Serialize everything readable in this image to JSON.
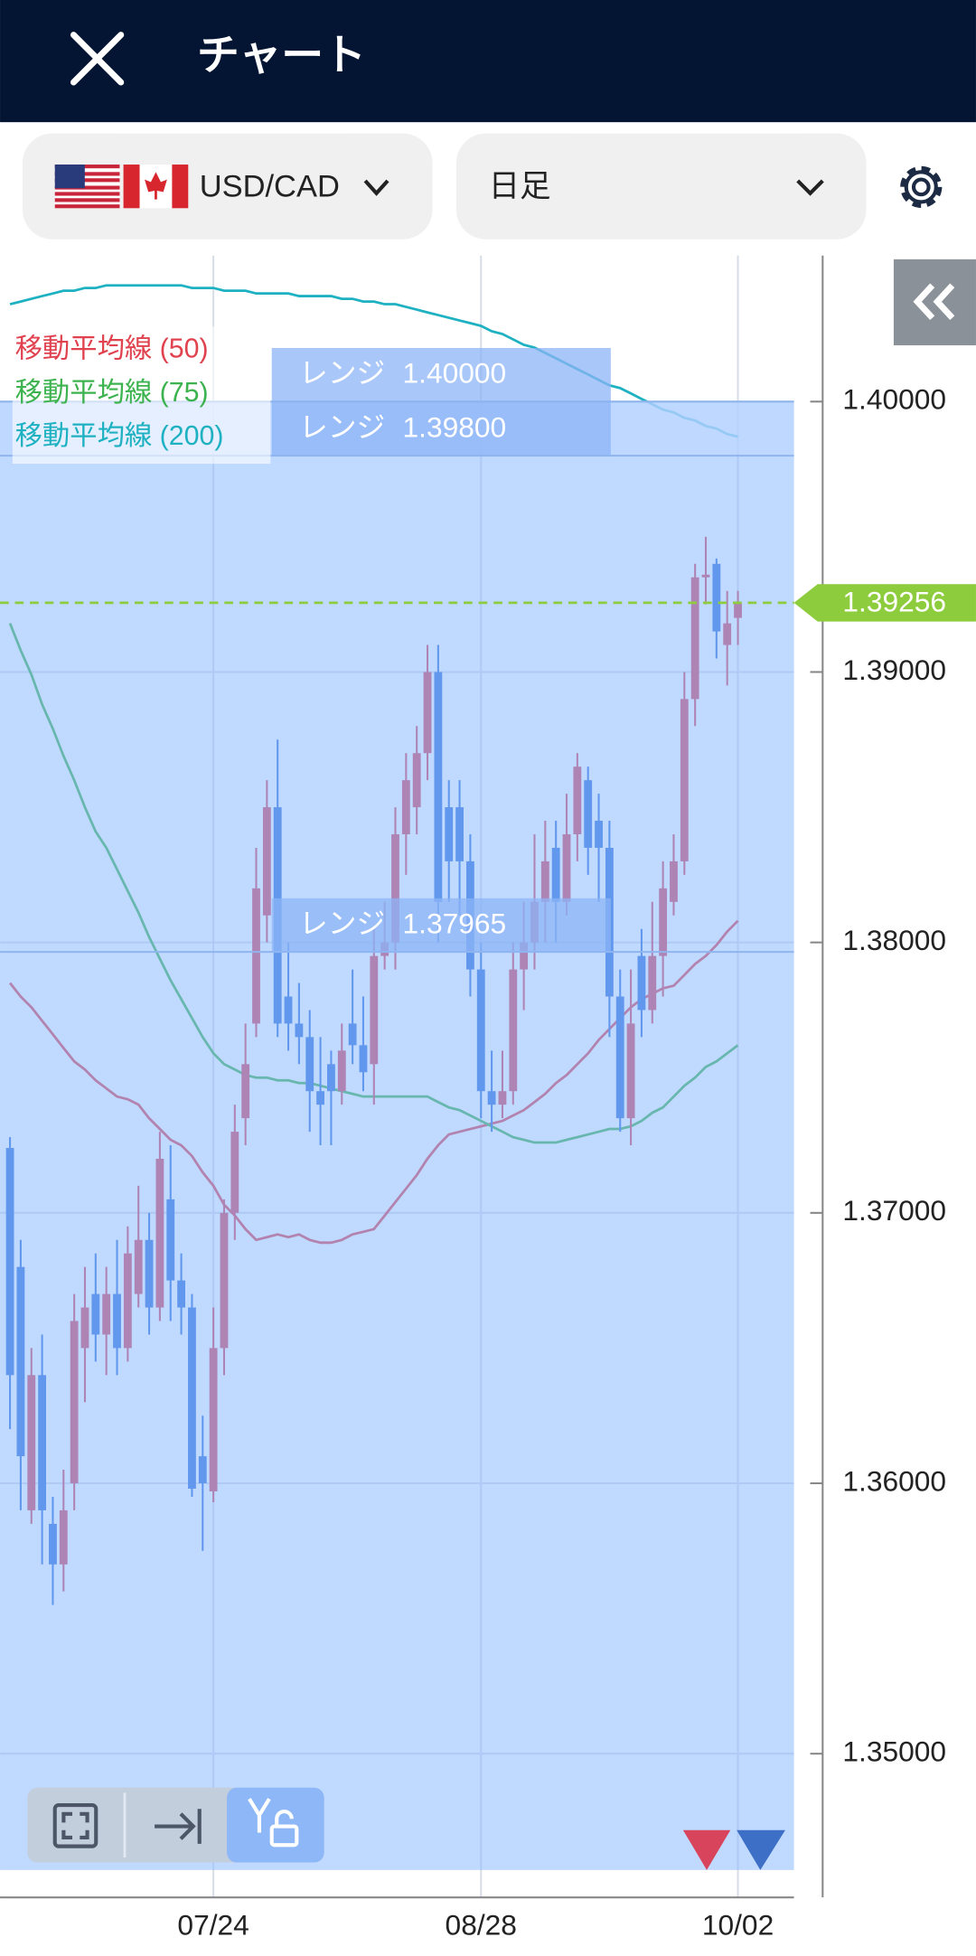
{
  "header": {
    "title": "チャート"
  },
  "controls": {
    "pair": "USD/CAD",
    "timeframe": "日足"
  },
  "chart_data": {
    "type": "candlestick",
    "categories": [
      null,
      null,
      null,
      null,
      null,
      null,
      null,
      null,
      null,
      null,
      null,
      null,
      null,
      null,
      null,
      null,
      null,
      null,
      null,
      "07/24",
      null,
      null,
      null,
      null,
      null,
      null,
      null,
      null,
      null,
      null,
      null,
      null,
      null,
      null,
      null,
      null,
      null,
      null,
      null,
      null,
      null,
      null,
      null,
      null,
      "08/28",
      null,
      null,
      null,
      null,
      null,
      null,
      null,
      null,
      null,
      null,
      null,
      null,
      null,
      null,
      null,
      null,
      null,
      null,
      null,
      null,
      null,
      null,
      null,
      "10/02"
    ],
    "open": [
      1.3724,
      1.368,
      1.359,
      1.364,
      1.3585,
      1.357,
      1.36,
      1.365,
      1.367,
      1.3655,
      1.367,
      1.365,
      1.367,
      1.369,
      1.3665,
      1.3705,
      1.3675,
      1.3665,
      1.361,
      1.3597,
      1.365,
      1.37,
      1.3735,
      1.377,
      1.381,
      1.385,
      1.378,
      1.377,
      1.3765,
      1.3745,
      1.3755,
      1.3745,
      1.377,
      1.3762,
      1.3755,
      1.3795,
      1.38,
      1.384,
      1.385,
      1.387,
      1.39,
      1.385,
      1.385,
      1.383,
      1.379,
      1.3745,
      1.374,
      1.3745,
      1.379,
      1.38,
      1.3815,
      1.3835,
      1.3815,
      1.384,
      1.386,
      1.3845,
      1.3835,
      1.378,
      1.3735,
      1.3795,
      1.3775,
      1.3795,
      1.3815,
      1.383,
      1.389,
      1.3935,
      1.394,
      1.391,
      1.392
    ],
    "high": [
      1.3728,
      1.369,
      1.365,
      1.3655,
      1.3595,
      1.3605,
      1.367,
      1.368,
      1.3685,
      1.368,
      1.369,
      1.3695,
      1.371,
      1.37,
      1.373,
      1.3725,
      1.3685,
      1.367,
      1.3625,
      1.3665,
      1.3705,
      1.374,
      1.377,
      1.3835,
      1.386,
      1.3875,
      1.38,
      1.3785,
      1.3775,
      1.3765,
      1.376,
      1.377,
      1.379,
      1.378,
      1.3805,
      1.3815,
      1.385,
      1.387,
      1.388,
      1.391,
      1.391,
      1.386,
      1.386,
      1.384,
      1.38,
      1.376,
      1.376,
      1.38,
      1.3815,
      1.384,
      1.3845,
      1.3845,
      1.3855,
      1.387,
      1.3865,
      1.3855,
      1.3845,
      1.379,
      1.379,
      1.3805,
      1.3815,
      1.383,
      1.384,
      1.39,
      1.394,
      1.395,
      1.3942,
      1.393,
      1.393
    ],
    "low": [
      1.362,
      1.359,
      1.3585,
      1.357,
      1.3555,
      1.356,
      1.359,
      1.363,
      1.3645,
      1.364,
      1.364,
      1.3645,
      1.3665,
      1.3655,
      1.366,
      1.366,
      1.3655,
      1.3595,
      1.3575,
      1.3593,
      1.364,
      1.369,
      1.3725,
      1.3765,
      1.38,
      1.3765,
      1.376,
      1.3755,
      1.373,
      1.3725,
      1.3725,
      1.374,
      1.3755,
      1.3745,
      1.374,
      1.379,
      1.379,
      1.3825,
      1.384,
      1.386,
      1.38,
      1.3815,
      1.381,
      1.378,
      1.3735,
      1.373,
      1.3735,
      1.374,
      1.3775,
      1.379,
      1.38,
      1.38,
      1.381,
      1.383,
      1.3825,
      1.3815,
      1.3765,
      1.373,
      1.3725,
      1.3765,
      1.377,
      1.378,
      1.381,
      1.3825,
      1.388,
      1.3925,
      1.3905,
      1.3895,
      1.391
    ],
    "close": [
      1.364,
      1.361,
      1.364,
      1.359,
      1.357,
      1.359,
      1.366,
      1.3665,
      1.3655,
      1.367,
      1.365,
      1.3685,
      1.369,
      1.3665,
      1.372,
      1.3675,
      1.3665,
      1.3598,
      1.36,
      1.365,
      1.37,
      1.373,
      1.3755,
      1.382,
      1.385,
      1.377,
      1.377,
      1.3765,
      1.3745,
      1.374,
      1.3745,
      1.376,
      1.3762,
      1.3752,
      1.3795,
      1.38,
      1.384,
      1.386,
      1.387,
      1.39,
      1.3815,
      1.383,
      1.383,
      1.379,
      1.3745,
      1.374,
      1.3745,
      1.379,
      1.38,
      1.3815,
      1.383,
      1.3815,
      1.384,
      1.3865,
      1.3835,
      1.3835,
      1.378,
      1.3735,
      1.377,
      1.3775,
      1.3795,
      1.382,
      1.383,
      1.389,
      1.3935,
      1.3936,
      1.3915,
      1.3918,
      1.39256
    ],
    "up_color": "#d8445c",
    "down_color": "#2e6fd8",
    "series": [
      {
        "name": "移動平均線 (50)",
        "color": "#e0424f",
        "values": [
          1.3785,
          1.378,
          1.3776,
          1.3771,
          1.3766,
          1.3761,
          1.3756,
          1.3753,
          1.3749,
          1.3746,
          1.3743,
          1.3742,
          1.374,
          1.3735,
          1.3731,
          1.3727,
          1.3725,
          1.3721,
          1.3715,
          1.371,
          1.3703,
          1.3699,
          1.3694,
          1.369,
          1.3691,
          1.3692,
          1.3691,
          1.3692,
          1.369,
          1.3689,
          1.3689,
          1.369,
          1.3692,
          1.3693,
          1.3694,
          1.3699,
          1.3704,
          1.3709,
          1.3714,
          1.372,
          1.3725,
          1.3729,
          1.373,
          1.3731,
          1.3732,
          1.3733,
          1.3734,
          1.3736,
          1.3738,
          1.3741,
          1.3744,
          1.3748,
          1.3751,
          1.3755,
          1.3759,
          1.3764,
          1.3768,
          1.3772,
          1.3776,
          1.3779,
          1.3781,
          1.3783,
          1.3784,
          1.3788,
          1.3792,
          1.3795,
          1.3799,
          1.3804,
          1.3808
        ]
      },
      {
        "name": "移動平均線 (75)",
        "color": "#3db34f",
        "values": [
          1.3918,
          1.3908,
          1.3899,
          1.3888,
          1.3879,
          1.3869,
          1.386,
          1.385,
          1.3841,
          1.3835,
          1.3827,
          1.3819,
          1.3811,
          1.3802,
          1.3794,
          1.3786,
          1.3779,
          1.3772,
          1.3765,
          1.3759,
          1.3755,
          1.3753,
          1.3751,
          1.375,
          1.375,
          1.3749,
          1.3749,
          1.3748,
          1.3748,
          1.3747,
          1.3746,
          1.3745,
          1.3744,
          1.3743,
          1.3743,
          1.3743,
          1.3743,
          1.3743,
          1.3743,
          1.3743,
          1.3741,
          1.3739,
          1.3738,
          1.3736,
          1.3734,
          1.3732,
          1.373,
          1.3728,
          1.3727,
          1.3726,
          1.3726,
          1.3726,
          1.3727,
          1.3728,
          1.3729,
          1.373,
          1.3731,
          1.3731,
          1.3732,
          1.3734,
          1.3737,
          1.3739,
          1.3743,
          1.3747,
          1.375,
          1.3754,
          1.3756,
          1.3759,
          1.3762
        ]
      },
      {
        "name": "移動平均線 (200)",
        "color": "#1eb1c2",
        "values": [
          1.4036,
          1.4037,
          1.4038,
          1.4039,
          1.404,
          1.4041,
          1.4041,
          1.4042,
          1.4042,
          1.4043,
          1.4043,
          1.4043,
          1.4043,
          1.4043,
          1.4043,
          1.4043,
          1.4043,
          1.4042,
          1.4042,
          1.4042,
          1.4041,
          1.4041,
          1.4041,
          1.404,
          1.404,
          1.404,
          1.404,
          1.4039,
          1.4039,
          1.4039,
          1.4039,
          1.4038,
          1.4038,
          1.4037,
          1.4037,
          1.4036,
          1.4036,
          1.4035,
          1.4034,
          1.4033,
          1.4032,
          1.4031,
          1.403,
          1.4029,
          1.4028,
          1.4026,
          1.4025,
          1.4023,
          1.4021,
          1.402,
          1.4018,
          1.4016,
          1.4014,
          1.4012,
          1.401,
          1.4008,
          1.4006,
          1.4005,
          1.4003,
          1.4001,
          1.3999,
          1.3997,
          1.3996,
          1.3994,
          1.3993,
          1.3991,
          1.399,
          1.3988,
          1.3987
        ]
      }
    ],
    "ylim": [
      1.3457,
      1.4054
    ],
    "yticks": [
      {
        "value": 1.35,
        "label": "1.35000"
      },
      {
        "value": 1.36,
        "label": "1.36000"
      },
      {
        "value": 1.37,
        "label": "1.37000"
      },
      {
        "value": 1.38,
        "label": "1.38000"
      },
      {
        "value": 1.39,
        "label": "1.39000"
      },
      {
        "value": 1.4,
        "label": "1.40000"
      }
    ],
    "grid": true,
    "range_lines": [
      {
        "label": "レンジ",
        "value": 1.4,
        "value_label": "1.40000"
      },
      {
        "label": "レンジ",
        "value": 1.398,
        "value_label": "1.39800"
      },
      {
        "label": "レンジ",
        "value": 1.37965,
        "value_label": "1.37965"
      }
    ],
    "current_price": 1.39256,
    "current_price_color": "#8dcc3c"
  }
}
